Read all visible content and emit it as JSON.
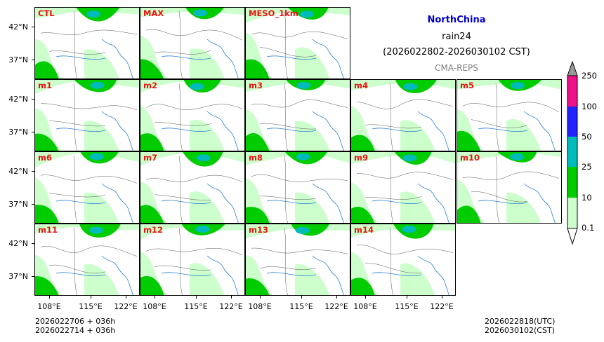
{
  "title": {
    "region": "NorthChina",
    "variable": "rain24",
    "period": "(2026022802-2026030102 CST)",
    "system": "CMA-REPS"
  },
  "panels": [
    {
      "label": "CTL"
    },
    {
      "label": "MAX"
    },
    {
      "label": "MESO_1km"
    },
    {
      "label": "m1"
    },
    {
      "label": "m2"
    },
    {
      "label": "m3"
    },
    {
      "label": "m4"
    },
    {
      "label": "m5"
    },
    {
      "label": "m6"
    },
    {
      "label": "m7"
    },
    {
      "label": "m8"
    },
    {
      "label": "m9"
    },
    {
      "label": "m10"
    },
    {
      "label": "m11"
    },
    {
      "label": "m12"
    },
    {
      "label": "m13"
    },
    {
      "label": "m14"
    }
  ],
  "lat_labels": [
    "42°N",
    "37°N"
  ],
  "lon_labels": [
    "108°E",
    "115°E",
    "122°E"
  ],
  "colorbar": {
    "levels": [
      "0.1",
      "10",
      "25",
      "50",
      "100",
      "250"
    ],
    "colors": [
      "#ccffcc",
      "#00cc00",
      "#00bbbb",
      "#2222ff",
      "#ee1188",
      "#999999"
    ]
  },
  "footer": {
    "init1": "2026022706  +  036h",
    "init2": "2026022714  +  036h",
    "valid_utc": "2026022818(UTC)",
    "valid_cst": "2026030102(CST)"
  },
  "colors": {
    "title_accent": "#0000cc",
    "label_red": "#ee1111",
    "light_rain": "#ccffcc",
    "moderate_rain": "#00cc00",
    "heavy_rain": "#00bbbb"
  }
}
